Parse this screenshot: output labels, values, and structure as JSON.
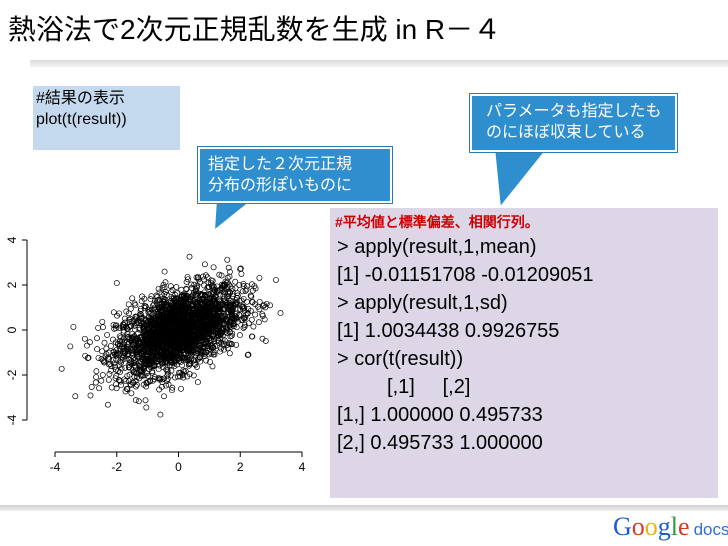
{
  "slide": {
    "title": "熱浴法で2次元正規乱数を生成 in R－４",
    "code_comment": "#結果の表示",
    "code_line": "plot(t(result))"
  },
  "callouts": {
    "left": [
      "指定した２次元正規",
      "分布の形ぽいものに"
    ],
    "right": [
      "パラメータも指定したも",
      "のにほぼ収束している"
    ]
  },
  "results": {
    "heading": "#平均値と標準偏差、相関行列。",
    "lines": [
      "> apply(result,1,mean)",
      "[1] -0.01151708 -0.01209051",
      "> apply(result,1,sd)",
      "[1] 1.0034438 0.9926755",
      "> cor(t(result))",
      "         [,1]     [,2]",
      "[1,] 1.000000 0.495733",
      "[2,] 0.495733 1.000000"
    ]
  },
  "chart_data": {
    "type": "scatter",
    "title": "",
    "xlabel": "",
    "ylabel": "",
    "xticks": [
      "-4",
      "-2",
      "0",
      "2",
      "4"
    ],
    "yticks": [
      "-4",
      "-2",
      "0",
      "2",
      "4"
    ],
    "xlim": [
      -4.2,
      4.5
    ],
    "ylim": [
      -4.6,
      4.2
    ],
    "correlation": 0.495733,
    "mean": [
      -0.01151708,
      -0.01209051
    ],
    "sd": [
      1.0034438,
      0.9926755
    ],
    "marker": "open-circle",
    "grid": false
  },
  "footer": {
    "brand": "Google",
    "product": "docs"
  }
}
